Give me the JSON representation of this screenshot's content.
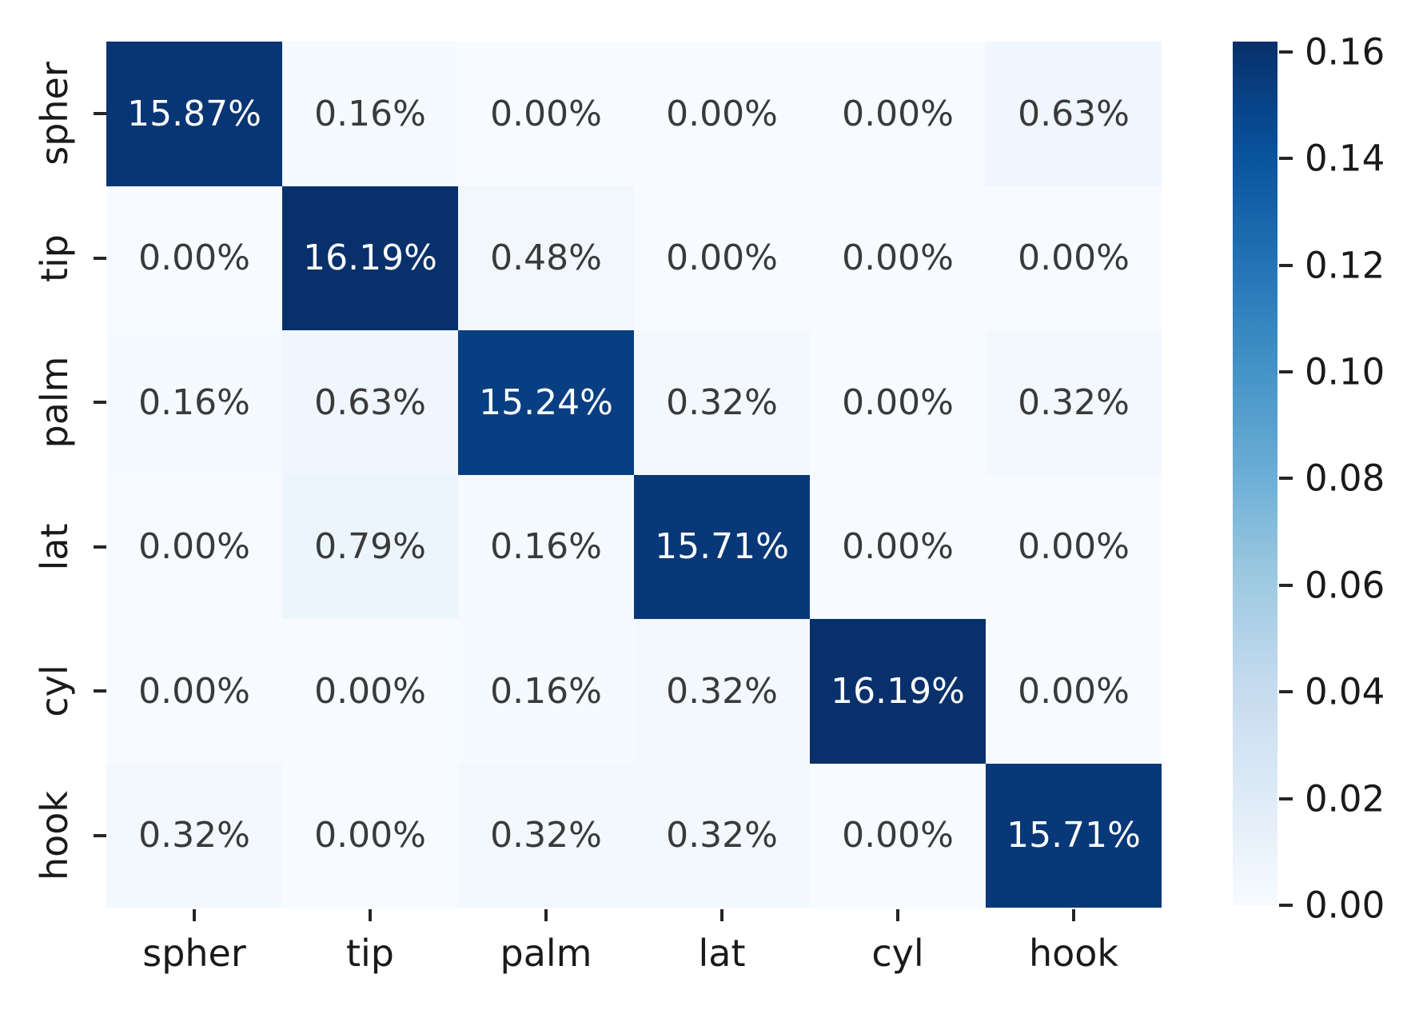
{
  "figure": {
    "background": "#ffffff",
    "axis_text_color": "#1a1a1a",
    "annot_text_dark": "#3a3a3a",
    "annot_text_light": "#ffffff"
  },
  "chart_data": {
    "type": "heatmap",
    "title": "",
    "xlabel": "",
    "ylabel": "",
    "x_categories": [
      "spher",
      "tip",
      "palm",
      "lat",
      "cyl",
      "hook"
    ],
    "y_categories": [
      "spher",
      "tip",
      "palm",
      "lat",
      "cyl",
      "hook"
    ],
    "cell_labels": [
      [
        "15.87%",
        "0.16%",
        "0.00%",
        "0.00%",
        "0.00%",
        "0.63%"
      ],
      [
        "0.00%",
        "16.19%",
        "0.48%",
        "0.00%",
        "0.00%",
        "0.00%"
      ],
      [
        "0.16%",
        "0.63%",
        "15.24%",
        "0.32%",
        "0.00%",
        "0.32%"
      ],
      [
        "0.00%",
        "0.79%",
        "0.16%",
        "15.71%",
        "0.00%",
        "0.00%"
      ],
      [
        "0.00%",
        "0.00%",
        "0.16%",
        "0.32%",
        "16.19%",
        "0.00%"
      ],
      [
        "0.32%",
        "0.00%",
        "0.32%",
        "0.32%",
        "0.00%",
        "15.71%"
      ]
    ],
    "values": [
      [
        0.1587,
        0.0016,
        0.0,
        0.0,
        0.0,
        0.0063
      ],
      [
        0.0,
        0.1619,
        0.0048,
        0.0,
        0.0,
        0.0
      ],
      [
        0.0016,
        0.0063,
        0.1524,
        0.0032,
        0.0,
        0.0032
      ],
      [
        0.0,
        0.0079,
        0.0016,
        0.1571,
        0.0,
        0.0
      ],
      [
        0.0,
        0.0,
        0.0016,
        0.0032,
        0.1619,
        0.0
      ],
      [
        0.0032,
        0.0,
        0.0032,
        0.0032,
        0.0,
        0.1571
      ]
    ],
    "vmin": 0.0,
    "vmax": 0.1619,
    "grid": false,
    "legend_position": "right-colorbar",
    "colorbar": {
      "tick_labels": [
        "0.16",
        "0.14",
        "0.12",
        "0.10",
        "0.08",
        "0.06",
        "0.04",
        "0.02",
        "0.00"
      ],
      "tick_values": [
        0.16,
        0.14,
        0.12,
        0.1,
        0.08,
        0.06,
        0.04,
        0.02,
        0.0
      ]
    },
    "colormap": {
      "name": "Blues",
      "stops": [
        "#f7fbff",
        "#deebf7",
        "#c6dbef",
        "#9ecae1",
        "#6baed6",
        "#4292c6",
        "#2171b5",
        "#08519c",
        "#08306b"
      ]
    }
  }
}
